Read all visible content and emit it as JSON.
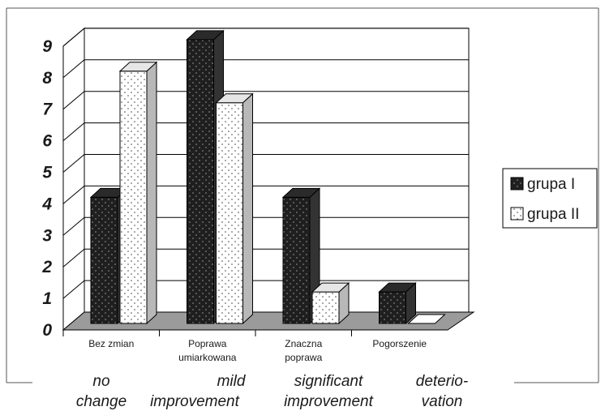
{
  "chart_data": {
    "type": "bar",
    "three_d": true,
    "categories": [
      "Bez zmian",
      "Poprawa umiarkowana",
      "Znaczna poprawa",
      "Pogorszenie"
    ],
    "category_lines": [
      [
        "Bez zmian"
      ],
      [
        "Poprawa",
        "umiarkowana"
      ],
      [
        "Znaczna",
        "poprawa"
      ],
      [
        "Pogorszenie"
      ]
    ],
    "series": [
      {
        "name": "grupa I",
        "values": [
          4,
          9,
          4,
          1
        ],
        "fill": "#1f1f1f",
        "dot": "#9a9a9a"
      },
      {
        "name": "grupa II",
        "values": [
          8,
          7,
          1,
          0
        ],
        "fill": "#ffffff",
        "dot": "#444444"
      }
    ],
    "ylim": [
      0,
      9
    ],
    "yticks": [
      "0",
      "1",
      "2",
      "3",
      "4",
      "5",
      "6",
      "7",
      "8",
      "9"
    ],
    "grid": true,
    "legend_position": "right",
    "translations": [
      [
        "no",
        "change"
      ],
      [
        "mild",
        "improvement"
      ],
      [
        "significant",
        "improvement"
      ],
      [
        "deterio-",
        "vation"
      ]
    ],
    "colors": {
      "floor": "#9b9b9b",
      "side_light": "#b8b8b8",
      "side_dark": "#555555",
      "grid": "#000000"
    }
  }
}
